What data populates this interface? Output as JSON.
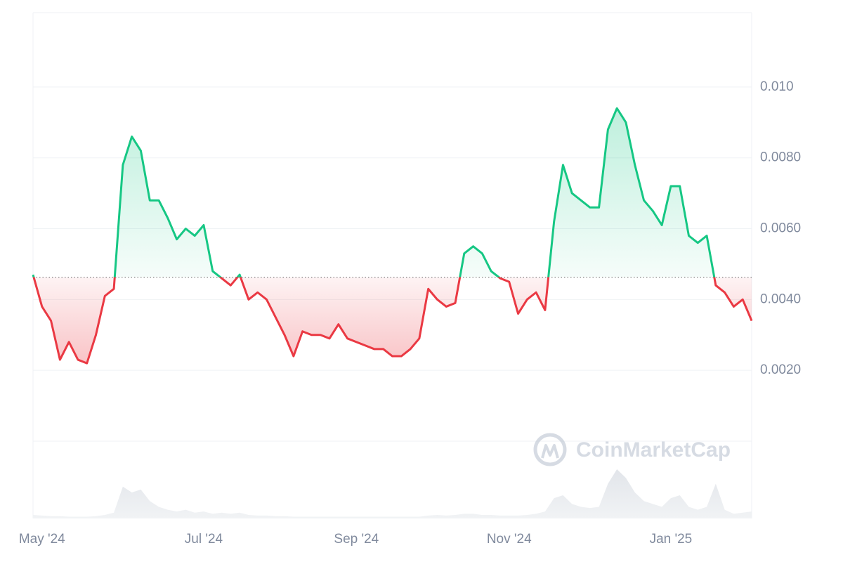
{
  "chart_data": {
    "type": "line",
    "categories": [
      null,
      "May '24",
      null,
      null,
      null,
      null,
      null,
      null,
      null,
      null,
      null,
      null,
      null,
      null,
      null,
      null,
      null,
      null,
      null,
      "Jul '24",
      null,
      null,
      null,
      null,
      null,
      null,
      null,
      null,
      null,
      null,
      null,
      null,
      null,
      null,
      null,
      null,
      "Sep '24",
      null,
      null,
      null,
      null,
      null,
      null,
      null,
      null,
      null,
      null,
      null,
      null,
      null,
      null,
      null,
      null,
      "Nov '24",
      null,
      null,
      null,
      null,
      null,
      null,
      null,
      null,
      null,
      null,
      null,
      null,
      null,
      null,
      null,
      null,
      null,
      "Jan '25",
      null,
      null,
      null,
      null,
      null,
      null,
      null,
      null,
      null
    ],
    "series": [
      {
        "values": [
          0.0047,
          0.0038,
          0.0034,
          0.0023,
          0.0028,
          0.0023,
          0.0022,
          0.003,
          0.0041,
          0.0043,
          0.0078,
          0.0086,
          0.0082,
          0.0068,
          0.0068,
          0.0063,
          0.0057,
          0.006,
          0.0058,
          0.0061,
          0.0048,
          0.0046,
          0.0044,
          0.0047,
          0.004,
          0.0042,
          0.004,
          0.0035,
          0.003,
          0.0024,
          0.0031,
          0.003,
          0.003,
          0.0029,
          0.0033,
          0.0029,
          0.0028,
          0.0027,
          0.0026,
          0.0026,
          0.0024,
          0.0024,
          0.0026,
          0.0029,
          0.0043,
          0.004,
          0.0038,
          0.0039,
          0.0053,
          0.0055,
          0.0053,
          0.0048,
          0.0046,
          0.0045,
          0.0036,
          0.004,
          0.0042,
          0.0037,
          0.0062,
          0.0078,
          0.007,
          0.0068,
          0.0066,
          0.0066,
          0.0088,
          0.0094,
          0.009,
          0.0078,
          0.0068,
          0.0065,
          0.0061,
          0.0072,
          0.0072,
          0.0058,
          0.0056,
          0.0058,
          0.0044,
          0.0042,
          0.0038,
          0.004,
          0.0034
        ]
      },
      {
        "values": [
          6,
          5,
          4,
          4,
          3,
          3,
          3,
          4,
          6,
          10,
          55,
          45,
          50,
          30,
          20,
          15,
          12,
          15,
          10,
          12,
          8,
          10,
          8,
          10,
          6,
          5,
          5,
          4,
          4,
          3,
          3,
          3,
          3,
          3,
          3,
          3,
          3,
          3,
          3,
          3,
          3,
          3,
          3,
          3,
          5,
          6,
          5,
          6,
          8,
          8,
          6,
          6,
          5,
          5,
          5,
          6,
          8,
          12,
          35,
          40,
          25,
          20,
          18,
          20,
          60,
          85,
          70,
          45,
          30,
          25,
          20,
          35,
          40,
          20,
          15,
          20,
          60,
          15,
          8,
          10,
          12
        ]
      }
    ],
    "up_color": "#16c784",
    "down_color": "#ea3943",
    "baseline": 0.00463,
    "ylim": [
      0,
      0.0121
    ],
    "yticks": [
      {
        "value": 0.002,
        "label": "0.0020"
      },
      {
        "value": 0.004,
        "label": "0.0040"
      },
      {
        "value": 0.006,
        "label": "0.0060"
      },
      {
        "value": 0.008,
        "label": "0.0080"
      },
      {
        "value": 0.01,
        "label": "0.010"
      }
    ],
    "grid": true,
    "watermark": "CoinMarketCap"
  }
}
